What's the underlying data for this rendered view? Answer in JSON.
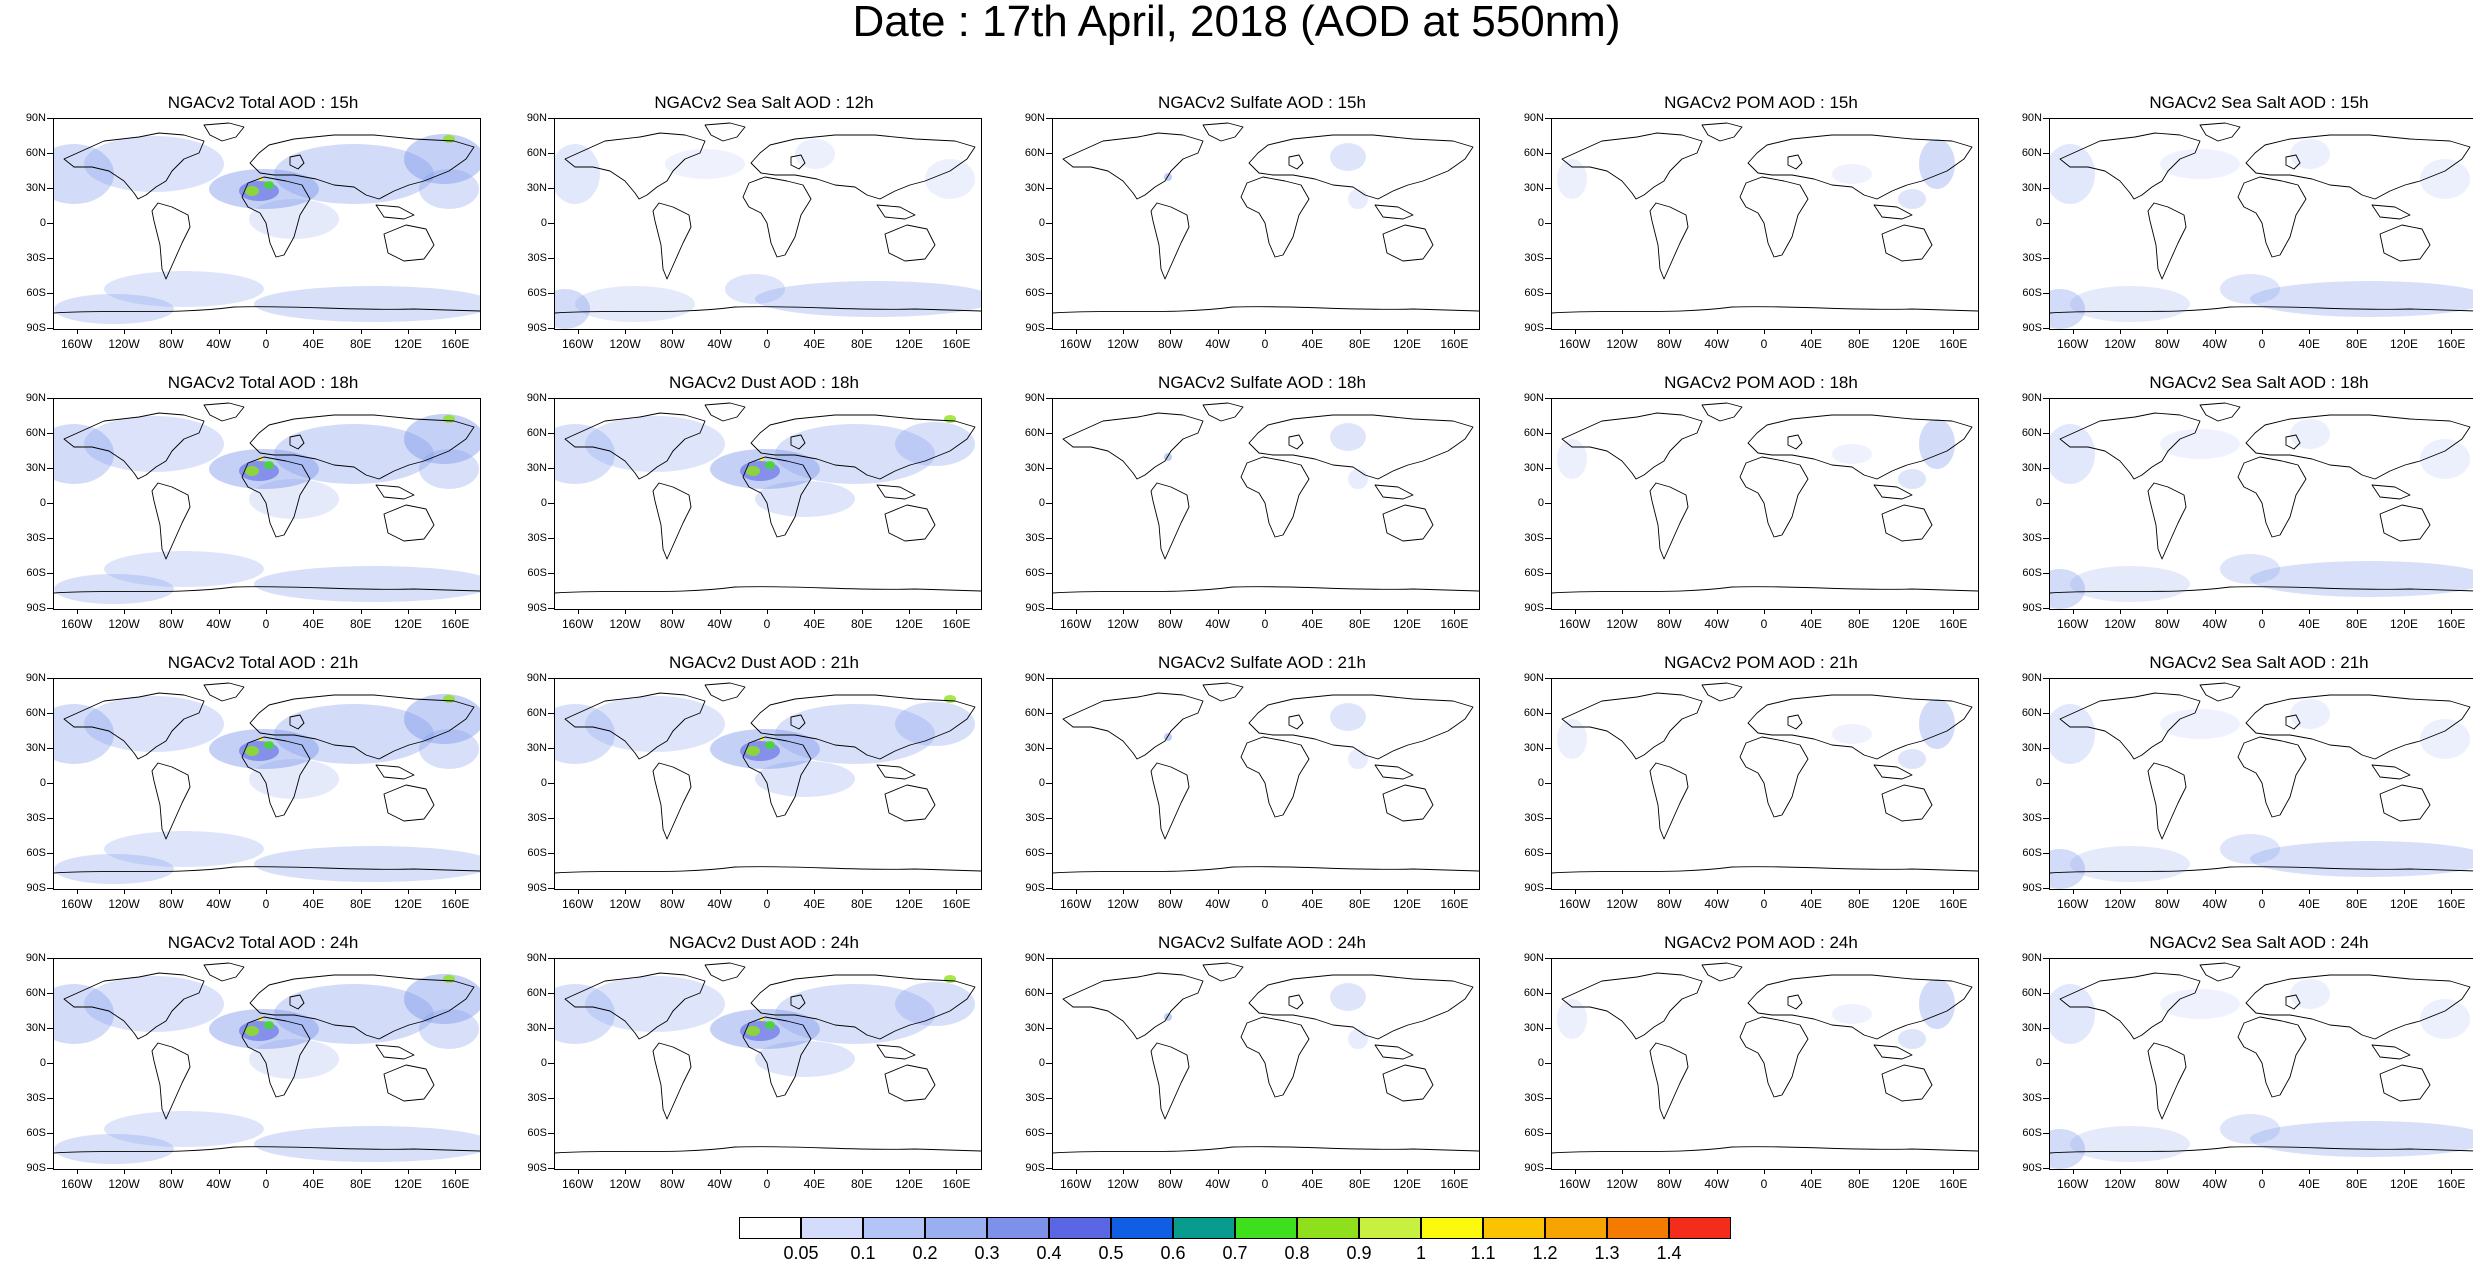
{
  "title": "Date : 17th April, 2018 (AOD at 550nm)",
  "lat_ticks": [
    "90N",
    "60N",
    "30N",
    "0",
    "30S",
    "60S",
    "90S"
  ],
  "lon_ticks": [
    "160W",
    "120W",
    "80W",
    "40W",
    "0",
    "40E",
    "80E",
    "120E",
    "160E"
  ],
  "lon_values": [
    -160,
    -120,
    -80,
    -40,
    0,
    40,
    80,
    120,
    160
  ],
  "rows": [
    [
      "NGACv2 Total AOD : 15h",
      "NGACv2 Sea Salt  AOD : 12h",
      "NGACv2 Sulfate AOD : 15h",
      "NGACv2 POM AOD : 15h",
      "NGACv2 Sea Salt  AOD : 15h"
    ],
    [
      "NGACv2 Total AOD : 18h",
      "NGACv2 Dust AOD : 18h",
      "NGACv2 Sulfate AOD : 18h",
      "NGACv2 POM AOD : 18h",
      "NGACv2 Sea Salt  AOD : 18h"
    ],
    [
      "NGACv2 Total AOD : 21h",
      "NGACv2 Dust AOD : 21h",
      "NGACv2 Sulfate AOD : 21h",
      "NGACv2 POM AOD : 21h",
      "NGACv2 Sea Salt  AOD : 21h"
    ],
    [
      "NGACv2 Total AOD : 24h",
      "NGACv2 Dust AOD : 24h",
      "NGACv2 Sulfate AOD : 24h",
      "NGACv2 POM AOD : 24h",
      "NGACv2 Sea Salt  AOD : 24h"
    ]
  ],
  "colorbar": {
    "labels": [
      "0.05",
      "0.1",
      "0.2",
      "0.3",
      "0.4",
      "0.5",
      "0.6",
      "0.7",
      "0.8",
      "0.9",
      "1",
      "1.1",
      "1.2",
      "1.3",
      "1.4"
    ],
    "colors": [
      "#ffffff",
      "#d3ddfb",
      "#b3c5f6",
      "#99afef",
      "#7d90ea",
      "#5b66e4",
      "#0f5ee4",
      "#089c8e",
      "#3ee01d",
      "#8ee01d",
      "#c7f040",
      "#fdf90c",
      "#f9c302",
      "#f7a302",
      "#f57a02",
      "#f42c1c"
    ]
  }
}
